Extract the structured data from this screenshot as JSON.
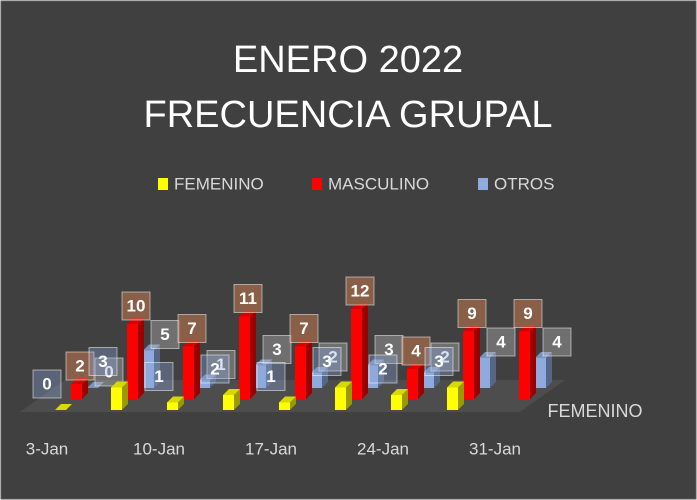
{
  "chart_data": {
    "type": "bar3d",
    "title": [
      "ENERO 2022",
      "FRECUENCIA GRUPAL"
    ],
    "categories": [
      "3-Jan",
      null,
      "10-Jan",
      null,
      "17-Jan",
      null,
      "24-Jan",
      null,
      "31-Jan"
    ],
    "series": [
      {
        "name": "FEMENINO",
        "color": "#ffff00",
        "values": [
          0,
          3,
          1,
          2,
          1,
          3,
          2,
          3,
          null
        ]
      },
      {
        "name": "MASCULINO",
        "color": "#ff0000",
        "values": [
          2,
          10,
          7,
          11,
          7,
          12,
          4,
          9,
          9
        ]
      },
      {
        "name": "OTROS",
        "color": "#8faadc",
        "values": [
          0,
          5,
          1,
          3,
          2,
          3,
          2,
          4,
          4
        ]
      }
    ],
    "depth_axis_label": "FEMENINO",
    "legend": "top"
  }
}
